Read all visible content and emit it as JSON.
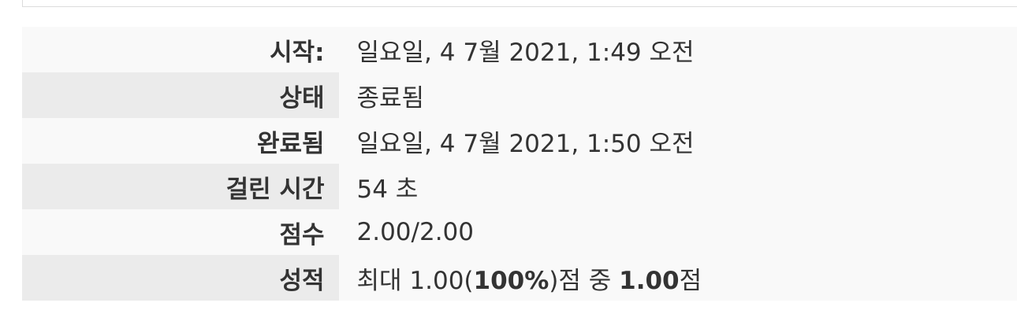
{
  "summary": {
    "rows": [
      {
        "label": "시작:",
        "value": "일요일, 4 7월 2021, 1:49 오전"
      },
      {
        "label": "상태",
        "value": "종료됨"
      },
      {
        "label": "완료됨",
        "value": "일요일, 4 7월 2021, 1:50 오전"
      },
      {
        "label": "걸린 시간",
        "value": "54 초"
      },
      {
        "label": "점수",
        "value": "2.00/2.00"
      },
      {
        "label": "성적",
        "value_parts": {
          "prefix": "최대 1.00(",
          "percent": "100%",
          "middle": ")점 중 ",
          "grade": "1.00",
          "suffix": "점"
        }
      }
    ]
  }
}
